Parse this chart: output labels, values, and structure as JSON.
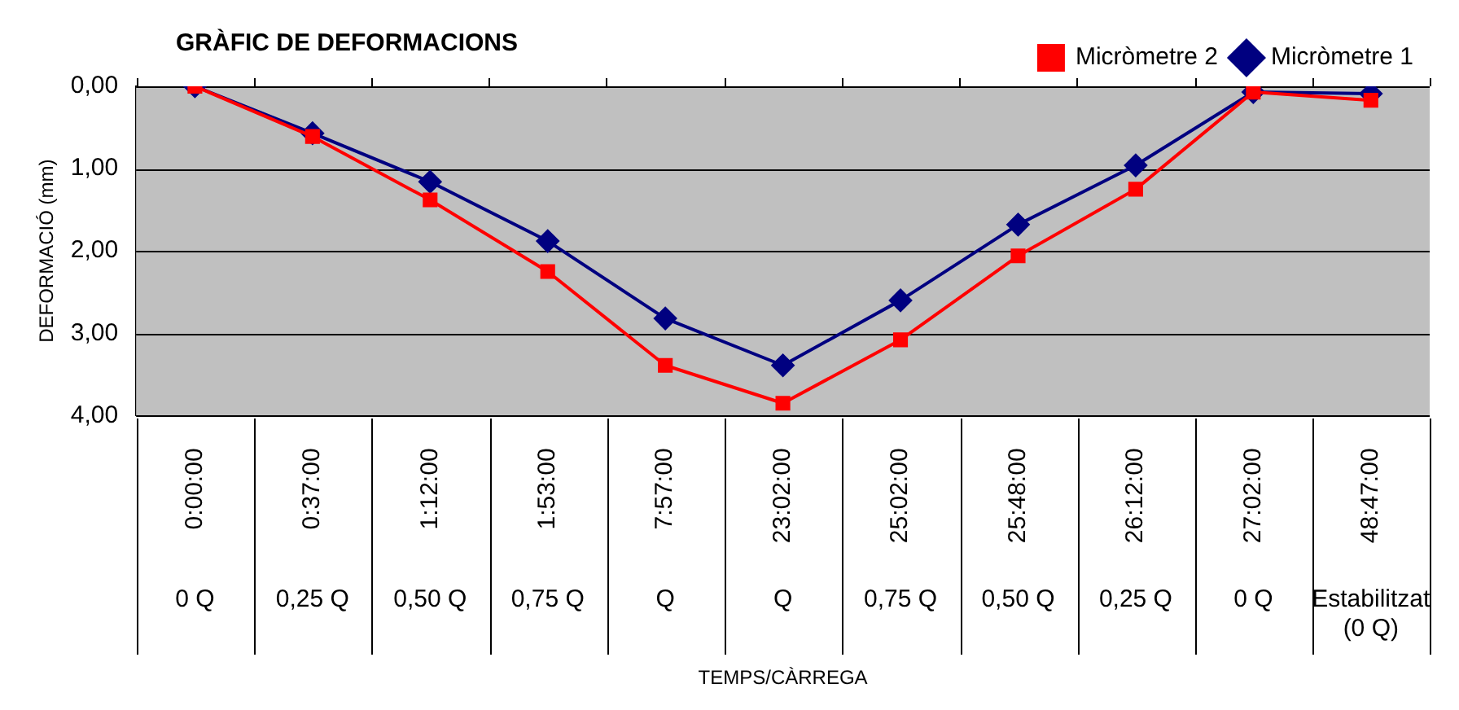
{
  "chart_data": {
    "type": "line",
    "title": "GRÀFIC DE DEFORMACIONS",
    "annotations": [
      "TEMPS/CÀRREGA"
    ],
    "ylabel": "DEFORMACIÓ (mm)",
    "categories": [
      "0:00:00\n0 Q",
      "0:37:00\n0,25 Q",
      "1:12:00\n0,50 Q",
      "1:53:00\n0,75 Q",
      "7:57:00\nQ",
      "23:02:00\nQ",
      "25:02:00\n0,75 Q",
      "25:48:00\n0,50 Q",
      "26:12:00\n0,25 Q",
      "27:02:00\n0 Q",
      "48:47:00\nEstabilitzat\n(0 Q)"
    ],
    "series": [
      {
        "name": "Micròmetre 1",
        "color": "#000080",
        "marker": "diamond",
        "values": [
          0,
          0.57,
          1.16,
          1.88,
          2.82,
          3.39,
          2.6,
          1.68,
          0.96,
          0.07,
          0.09
        ]
      },
      {
        "name": "Micròmetre 2",
        "color": "#ff0000",
        "marker": "square",
        "values": [
          0,
          0.61,
          1.38,
          2.25,
          3.39,
          3.85,
          3.08,
          2.06,
          1.25,
          0.07,
          0.17
        ]
      }
    ],
    "ylim": [
      4,
      0
    ],
    "yticks": [
      {
        "value": 0,
        "label": "0,00"
      },
      {
        "value": 1,
        "label": "1,00"
      },
      {
        "value": 2,
        "label": "2,00"
      },
      {
        "value": 3,
        "label": "3,00"
      },
      {
        "value": 4,
        "label": "4,00"
      }
    ],
    "grid": "y",
    "legend": "top right",
    "line_style": "solid"
  }
}
